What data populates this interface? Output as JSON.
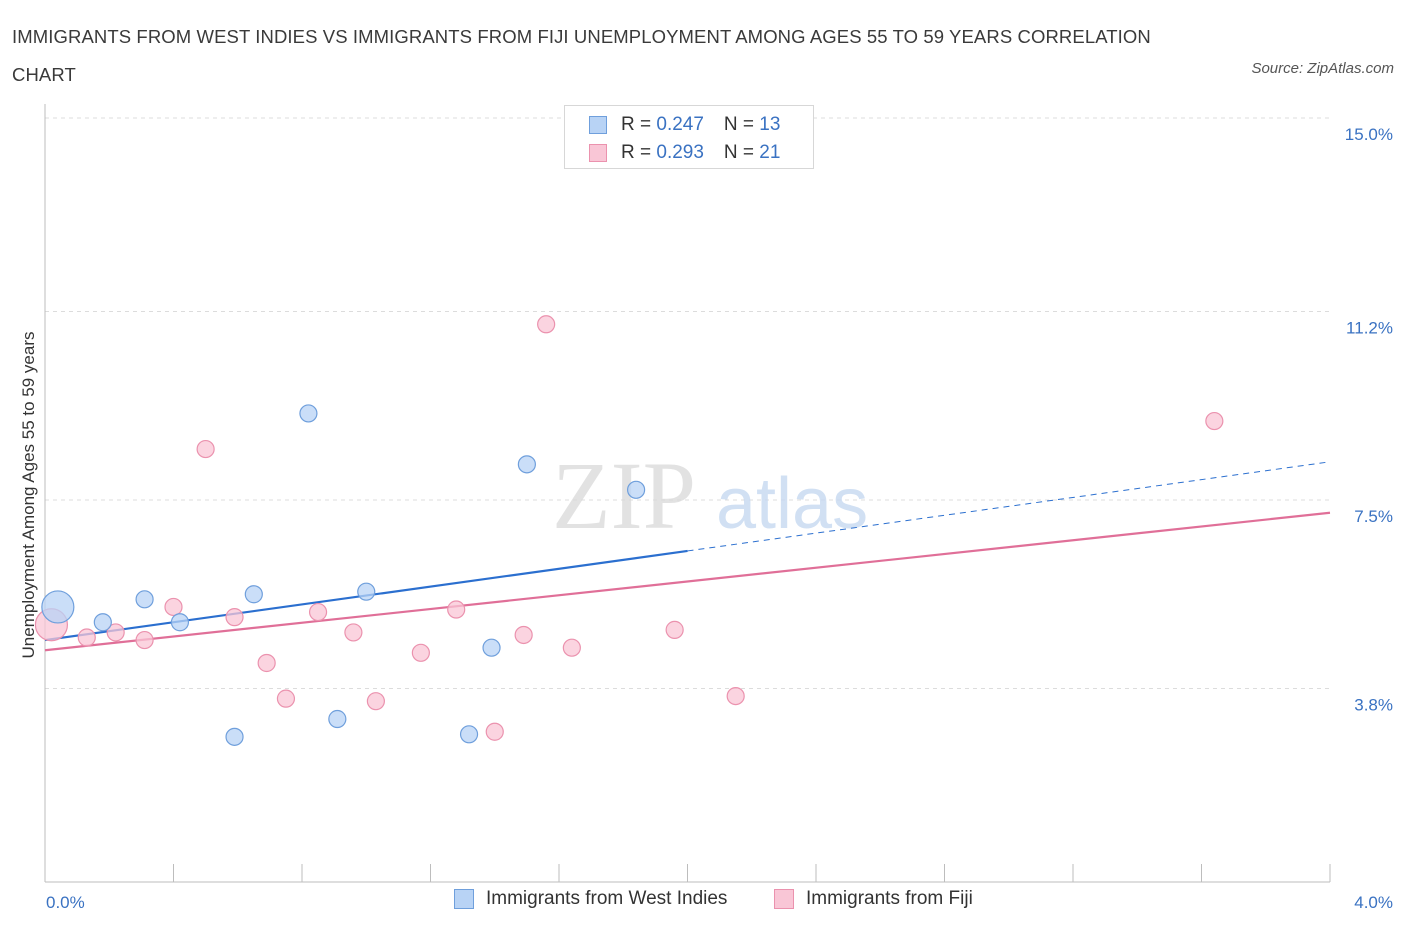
{
  "title": "IMMIGRANTS FROM WEST INDIES VS IMMIGRANTS FROM FIJI UNEMPLOYMENT AMONG AGES 55 TO 59 YEARS CORRELATION CHART",
  "source": "Source: ZipAtlas.com",
  "watermark": {
    "zip": "ZIP",
    "atlas": "atlas"
  },
  "legend": {
    "west_indies": {
      "r_label": "R = ",
      "r_value": "0.247",
      "n_label": "N = ",
      "n_value": "13"
    },
    "fiji": {
      "r_label": "R = ",
      "r_value": "0.293",
      "n_label": "N = ",
      "n_value": "21"
    }
  },
  "colors": {
    "west_indies_fill": "#b8d3f5",
    "west_indies_stroke": "#6f9fdc",
    "west_indies_line": "#2b6fcf",
    "fiji_fill": "#f9c6d6",
    "fiji_stroke": "#eb92ae",
    "fiji_line": "#e06f98",
    "axis_text": "#3a72c2",
    "grid": "#dcdcdc"
  },
  "chart_data": {
    "type": "scatter",
    "title": "IMMIGRANTS FROM WEST INDIES VS IMMIGRANTS FROM FIJI UNEMPLOYMENT AMONG AGES 55 TO 59 YEARS CORRELATION CHART",
    "xlabel": "",
    "ylabel": "Unemployment Among Ages 55 to 59 years",
    "xlim": [
      0.0,
      4.0
    ],
    "ylim": [
      0.0,
      15.0
    ],
    "x_tick_labels": [
      "0.0%",
      "4.0%"
    ],
    "y_ticks": [
      3.8,
      7.5,
      11.2,
      15.0
    ],
    "y_tick_labels": [
      "3.8%",
      "7.5%",
      "11.2%",
      "15.0%"
    ],
    "grid": true,
    "legend_position": "top-center",
    "series": [
      {
        "name": "Immigrants from West Indies",
        "points": [
          {
            "x": 0.04,
            "y": 5.4,
            "size": "large"
          },
          {
            "x": 0.18,
            "y": 5.1
          },
          {
            "x": 0.31,
            "y": 5.55
          },
          {
            "x": 0.42,
            "y": 5.1
          },
          {
            "x": 0.59,
            "y": 2.85
          },
          {
            "x": 0.65,
            "y": 5.65
          },
          {
            "x": 0.82,
            "y": 9.2
          },
          {
            "x": 0.91,
            "y": 3.2
          },
          {
            "x": 1.0,
            "y": 5.7
          },
          {
            "x": 1.32,
            "y": 2.9
          },
          {
            "x": 1.39,
            "y": 4.6
          },
          {
            "x": 1.5,
            "y": 8.2
          },
          {
            "x": 1.84,
            "y": 7.7
          }
        ],
        "trend": {
          "x_start": 0.0,
          "y_start": 4.75,
          "x_solid_end": 2.0,
          "y_solid_end": 6.5,
          "x_end": 4.0,
          "y_end": 8.25
        }
      },
      {
        "name": "Immigrants from Fiji",
        "points": [
          {
            "x": 0.02,
            "y": 5.05,
            "size": "large"
          },
          {
            "x": 0.13,
            "y": 4.8
          },
          {
            "x": 0.22,
            "y": 4.9
          },
          {
            "x": 0.31,
            "y": 4.75
          },
          {
            "x": 0.4,
            "y": 5.4
          },
          {
            "x": 0.5,
            "y": 8.5
          },
          {
            "x": 0.59,
            "y": 5.2
          },
          {
            "x": 0.69,
            "y": 4.3
          },
          {
            "x": 0.75,
            "y": 3.6
          },
          {
            "x": 0.85,
            "y": 5.3
          },
          {
            "x": 0.96,
            "y": 4.9
          },
          {
            "x": 1.03,
            "y": 3.55
          },
          {
            "x": 1.17,
            "y": 4.5
          },
          {
            "x": 1.28,
            "y": 5.35
          },
          {
            "x": 1.4,
            "y": 2.95
          },
          {
            "x": 1.49,
            "y": 4.85
          },
          {
            "x": 1.56,
            "y": 10.95
          },
          {
            "x": 1.64,
            "y": 4.6
          },
          {
            "x": 1.96,
            "y": 4.95
          },
          {
            "x": 2.15,
            "y": 3.65
          },
          {
            "x": 3.64,
            "y": 9.05
          }
        ],
        "trend": {
          "x_start": 0.0,
          "y_start": 4.55,
          "x_end": 4.0,
          "y_end": 7.25
        }
      }
    ]
  }
}
